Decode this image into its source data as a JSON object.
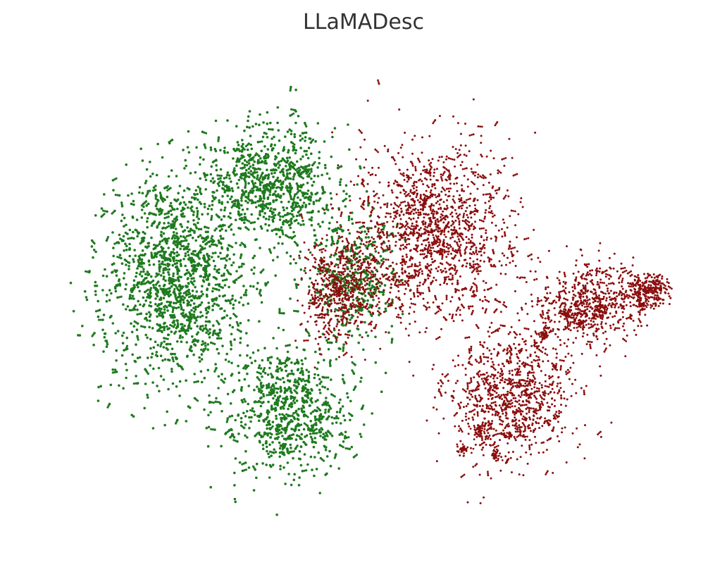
{
  "chart_data": {
    "type": "scatter",
    "title": "LLaMADesc",
    "axes_visible": false,
    "grid": false,
    "legend": "none",
    "xlim": [
      -100,
      100
    ],
    "ylim": [
      -80,
      80
    ],
    "series": [
      {
        "color": "#1f7a1f",
        "point_count": 3000,
        "centroid": [
          -43,
          5
        ],
        "clusters": [
          {
            "center": [
              -60,
              10
            ],
            "spread": [
              22,
              32
            ],
            "n": 1300
          },
          {
            "center": [
              -30,
              40
            ],
            "spread": [
              18,
              18
            ],
            "n": 700
          },
          {
            "center": [
              -25,
              -35
            ],
            "spread": [
              18,
              20
            ],
            "n": 650
          },
          {
            "center": [
              -5,
              10
            ],
            "spread": [
              12,
              20
            ],
            "n": 350
          }
        ]
      },
      {
        "color": "#8b0e0e",
        "point_count": 3200,
        "centroid": [
          30,
          0
        ],
        "clusters": [
          {
            "center": [
              20,
              25
            ],
            "spread": [
              22,
              25
            ],
            "n": 1200
          },
          {
            "center": [
              45,
              -30
            ],
            "spread": [
              18,
              20
            ],
            "n": 800
          },
          {
            "center": [
              70,
              0
            ],
            "spread": [
              14,
              12
            ],
            "n": 500
          },
          {
            "center": [
              88,
              5
            ],
            "spread": [
              6,
              5
            ],
            "n": 200
          },
          {
            "center": [
              -10,
              5
            ],
            "spread": [
              14,
              16
            ],
            "n": 500
          }
        ],
        "dense_spots": [
          [
            62,
            -3
          ],
          [
            67,
            -6
          ],
          [
            86,
            0
          ],
          [
            40,
            -50
          ],
          [
            35,
            -42
          ],
          [
            30,
            -48
          ],
          [
            55,
            -10
          ]
        ]
      }
    ]
  }
}
